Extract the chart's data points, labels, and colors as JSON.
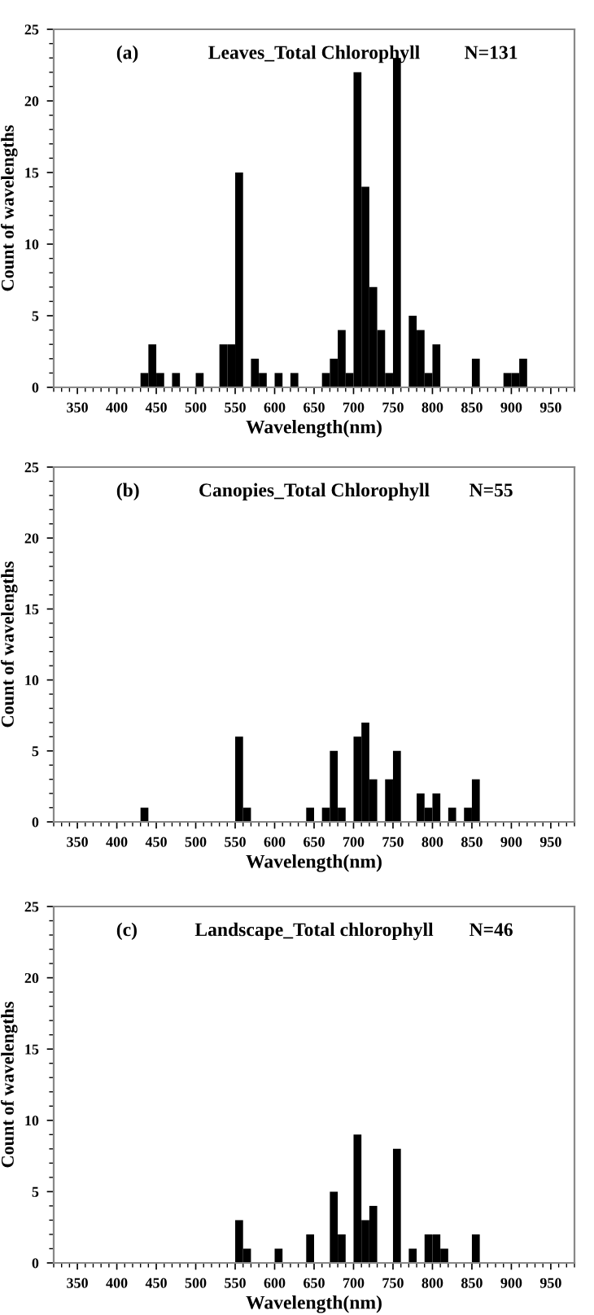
{
  "chart_data": [
    {
      "type": "histogram",
      "title": "Leaves_Total Chlorophyll",
      "annotations": [
        "(a)",
        "N=131"
      ],
      "xlabel": "Wavelength(nm)",
      "ylabel": "Count of wavelengths",
      "color": "#000000",
      "bins": [
        430,
        440,
        450,
        460,
        470,
        480,
        490,
        500,
        510,
        520,
        530,
        540,
        550,
        560,
        570,
        580,
        590,
        600,
        610,
        620,
        630,
        640,
        650,
        660,
        670,
        680,
        690,
        700,
        710,
        720,
        730,
        740,
        750,
        760,
        770,
        780,
        790,
        800,
        810,
        820,
        830,
        840,
        850,
        860,
        870,
        880,
        890,
        900,
        910,
        920
      ],
      "values": [
        1,
        3,
        1,
        0,
        1,
        0,
        0,
        1,
        0,
        0,
        3,
        3,
        15,
        0,
        2,
        1,
        0,
        1,
        0,
        1,
        0,
        0,
        0,
        1,
        2,
        4,
        1,
        22,
        14,
        7,
        4,
        1,
        23,
        0,
        5,
        4,
        1,
        3,
        0,
        0,
        0,
        0,
        2,
        0,
        0,
        0,
        1,
        1,
        2
      ],
      "xlim": [
        320,
        980
      ],
      "xticks": [
        350,
        400,
        450,
        500,
        550,
        600,
        650,
        700,
        750,
        800,
        850,
        900,
        950
      ],
      "ylim": [
        0,
        25
      ],
      "yticks": [
        0,
        5,
        10,
        15,
        20,
        25
      ]
    },
    {
      "type": "histogram",
      "title": "Canopies_Total Chlorophyll",
      "annotations": [
        "(b)",
        "N=55"
      ],
      "xlabel": "Wavelength(nm)",
      "ylabel": "Count of wavelengths",
      "color": "#000000",
      "bins": [
        430,
        440,
        450,
        460,
        470,
        480,
        490,
        500,
        510,
        520,
        530,
        540,
        550,
        560,
        570,
        580,
        590,
        600,
        610,
        620,
        630,
        640,
        650,
        660,
        670,
        680,
        690,
        700,
        710,
        720,
        730,
        740,
        750,
        760,
        770,
        780,
        790,
        800,
        810,
        820,
        830,
        840,
        850,
        860
      ],
      "values": [
        1,
        0,
        0,
        0,
        0,
        0,
        0,
        0,
        0,
        0,
        0,
        0,
        6,
        1,
        0,
        0,
        0,
        0,
        0,
        0,
        0,
        1,
        0,
        1,
        5,
        1,
        0,
        6,
        7,
        3,
        0,
        3,
        5,
        0,
        0,
        2,
        1,
        2,
        0,
        1,
        0,
        1,
        3
      ],
      "xlim": [
        320,
        980
      ],
      "xticks": [
        350,
        400,
        450,
        500,
        550,
        600,
        650,
        700,
        750,
        800,
        850,
        900,
        950
      ],
      "ylim": [
        0,
        25
      ],
      "yticks": [
        0,
        5,
        10,
        15,
        20,
        25
      ]
    },
    {
      "type": "histogram",
      "title": "Landscape_Total chlorophyll",
      "annotations": [
        "(c)",
        "N=46"
      ],
      "xlabel": "Wavelength(nm)",
      "ylabel": "Count of wavelengths",
      "color": "#000000",
      "bins": [
        550,
        560,
        570,
        580,
        590,
        600,
        610,
        620,
        630,
        640,
        650,
        660,
        670,
        680,
        690,
        700,
        710,
        720,
        730,
        740,
        750,
        760,
        770,
        780,
        790,
        800,
        810,
        820,
        830,
        840,
        850,
        860
      ],
      "values": [
        3,
        1,
        0,
        0,
        0,
        1,
        0,
        0,
        0,
        2,
        0,
        0,
        5,
        2,
        0,
        9,
        3,
        4,
        0,
        0,
        8,
        0,
        1,
        0,
        2,
        2,
        1,
        0,
        0,
        0,
        2
      ],
      "xlim": [
        320,
        980
      ],
      "xticks": [
        350,
        400,
        450,
        500,
        550,
        600,
        650,
        700,
        750,
        800,
        850,
        900,
        950
      ],
      "ylim": [
        0,
        25
      ],
      "yticks": [
        0,
        5,
        10,
        15,
        20,
        25
      ]
    }
  ]
}
